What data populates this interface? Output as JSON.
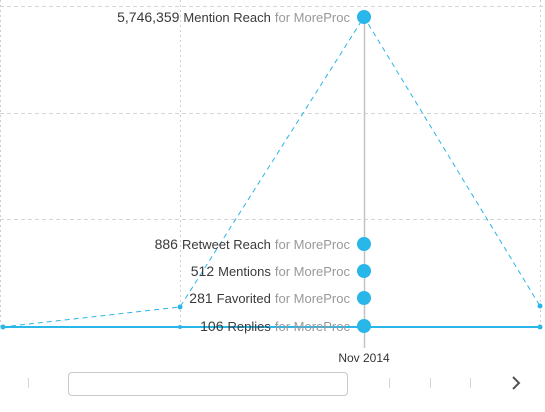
{
  "chart_data": {
    "type": "line",
    "period_label": "Nov 2014",
    "tooltip_suffix": "for MoreProc",
    "series": [
      {
        "name": "Mention Reach",
        "value": 5746359,
        "display": "5,746,359",
        "color": "#29b6e8",
        "style": "dashed"
      },
      {
        "name": "Retweet Reach",
        "value": 886,
        "display": "886",
        "color": "#29b6e8",
        "style": "solid"
      },
      {
        "name": "Mentions",
        "value": 512,
        "display": "512",
        "color": "#29b6e8",
        "style": "solid"
      },
      {
        "name": "Favorited",
        "value": 281,
        "display": "281",
        "color": "#29b6e8",
        "style": "dashed"
      },
      {
        "name": "Replies",
        "value": 106,
        "display": "106",
        "color": "#29b6e8",
        "style": "solid"
      }
    ],
    "grid": true
  },
  "navigator": {
    "next_icon": "chevron-right-icon"
  }
}
